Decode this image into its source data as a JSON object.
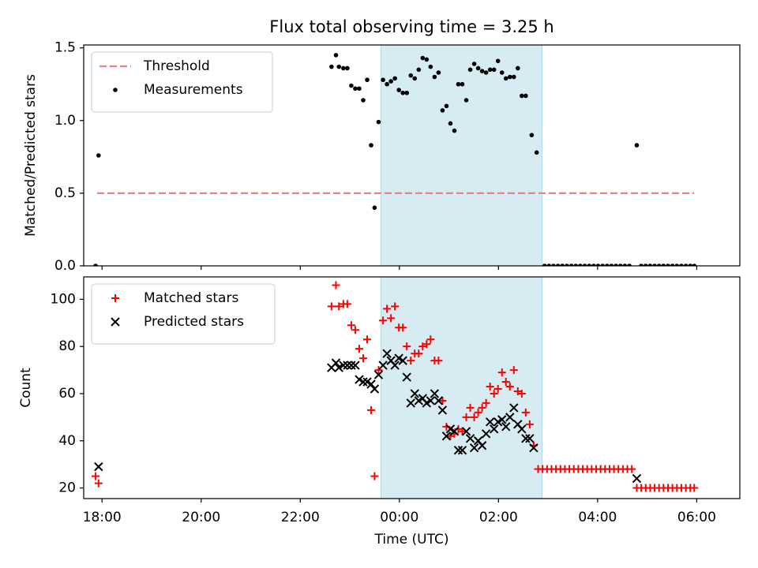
{
  "chart_data": [
    {
      "type": "scatter",
      "title": "Flux total observing time = 3.25 h",
      "xlabel": "",
      "ylabel": "Matched/Predicted stars",
      "xlim": [
        -6.37,
        6.87
      ],
      "ylim": [
        0,
        1.52
      ],
      "yticks": [
        0,
        0.5,
        1.0,
        1.5
      ],
      "ytick_labels": [
        "0.0",
        "0.5",
        "1.0",
        "1.5"
      ],
      "legend_position": "upper-left",
      "shaded_interval": {
        "from": -0.37,
        "to": 2.88,
        "color": "#add8e6"
      },
      "series": [
        {
          "name": "Threshold",
          "kind": "dashed-line",
          "color": "#f08080",
          "x": [
            -6.1,
            5.95
          ],
          "y": [
            0.5,
            0.5
          ]
        },
        {
          "name": "Measurements",
          "kind": "points",
          "color": "#000000",
          "points": [
            [
              -6.13,
              0.0
            ],
            [
              -6.07,
              0.76
            ],
            [
              -1.37,
              1.37
            ],
            [
              -1.28,
              1.45
            ],
            [
              -1.22,
              1.37
            ],
            [
              -1.13,
              1.36
            ],
            [
              -1.05,
              1.36
            ],
            [
              -0.97,
              1.24
            ],
            [
              -0.89,
              1.22
            ],
            [
              -0.81,
              1.22
            ],
            [
              -0.73,
              1.14
            ],
            [
              -0.65,
              1.28
            ],
            [
              -0.57,
              0.83
            ],
            [
              -0.5,
              0.4
            ],
            [
              -0.42,
              0.99
            ],
            [
              -0.33,
              1.28
            ],
            [
              -0.25,
              1.25
            ],
            [
              -0.17,
              1.27
            ],
            [
              -0.09,
              1.29
            ],
            [
              -0.01,
              1.21
            ],
            [
              0.07,
              1.19
            ],
            [
              0.15,
              1.19
            ],
            [
              0.23,
              1.31
            ],
            [
              0.31,
              1.29
            ],
            [
              0.39,
              1.35
            ],
            [
              0.47,
              1.43
            ],
            [
              0.55,
              1.42
            ],
            [
              0.63,
              1.37
            ],
            [
              0.71,
              1.3
            ],
            [
              0.79,
              1.33
            ],
            [
              0.87,
              1.07
            ],
            [
              0.95,
              1.1
            ],
            [
              1.03,
              0.98
            ],
            [
              1.11,
              0.93
            ],
            [
              1.19,
              1.25
            ],
            [
              1.27,
              1.25
            ],
            [
              1.35,
              1.14
            ],
            [
              1.43,
              1.35
            ],
            [
              1.51,
              1.39
            ],
            [
              1.59,
              1.36
            ],
            [
              1.67,
              1.34
            ],
            [
              1.75,
              1.33
            ],
            [
              1.83,
              1.35
            ],
            [
              1.91,
              1.35
            ],
            [
              1.99,
              1.41
            ],
            [
              2.07,
              1.33
            ],
            [
              2.15,
              1.29
            ],
            [
              2.23,
              1.3
            ],
            [
              2.31,
              1.3
            ],
            [
              2.39,
              1.36
            ],
            [
              2.47,
              1.17
            ],
            [
              2.55,
              1.17
            ],
            [
              2.67,
              0.9
            ],
            [
              2.77,
              0.78
            ],
            [
              2.93,
              0.0
            ],
            [
              3.02,
              0.0
            ],
            [
              3.11,
              0.0
            ],
            [
              3.2,
              0.0
            ],
            [
              3.29,
              0.0
            ],
            [
              3.38,
              0.0
            ],
            [
              3.47,
              0.0
            ],
            [
              3.56,
              0.0
            ],
            [
              3.65,
              0.0
            ],
            [
              3.74,
              0.0
            ],
            [
              3.83,
              0.0
            ],
            [
              3.92,
              0.0
            ],
            [
              4.01,
              0.0
            ],
            [
              4.1,
              0.0
            ],
            [
              4.19,
              0.0
            ],
            [
              4.28,
              0.0
            ],
            [
              4.37,
              0.0
            ],
            [
              4.46,
              0.0
            ],
            [
              4.55,
              0.0
            ],
            [
              4.64,
              0.0
            ],
            [
              4.79,
              0.83
            ],
            [
              4.88,
              0.0
            ],
            [
              4.97,
              0.0
            ],
            [
              5.06,
              0.0
            ],
            [
              5.15,
              0.0
            ],
            [
              5.24,
              0.0
            ],
            [
              5.33,
              0.0
            ],
            [
              5.42,
              0.0
            ],
            [
              5.51,
              0.0
            ],
            [
              5.6,
              0.0
            ],
            [
              5.69,
              0.0
            ],
            [
              5.78,
              0.0
            ],
            [
              5.87,
              0.0
            ],
            [
              5.95,
              0.0
            ]
          ]
        }
      ]
    },
    {
      "type": "scatter",
      "title": "",
      "xlabel": "Time (UTC)",
      "ylabel": "Count",
      "xlim": [
        -6.37,
        6.87
      ],
      "ylim": [
        15.5,
        109.5
      ],
      "xticks": [
        -6,
        -4,
        -2,
        0,
        2,
        4,
        6
      ],
      "xtick_labels": [
        "18:00",
        "20:00",
        "22:00",
        "00:00",
        "02:00",
        "04:00",
        "06:00"
      ],
      "yticks": [
        20,
        40,
        60,
        80,
        100
      ],
      "ytick_labels": [
        "20",
        "40",
        "60",
        "80",
        "100"
      ],
      "legend_position": "upper-left",
      "shaded_interval": {
        "from": -0.37,
        "to": 2.88,
        "color": "#add8e6"
      },
      "series": [
        {
          "name": "Matched stars",
          "kind": "plus",
          "color": "#ff0000",
          "points": [
            [
              -6.13,
              25
            ],
            [
              -6.07,
              22
            ],
            [
              -1.37,
              97
            ],
            [
              -1.28,
              106
            ],
            [
              -1.22,
              97
            ],
            [
              -1.13,
              98
            ],
            [
              -1.05,
              98
            ],
            [
              -0.97,
              89
            ],
            [
              -0.89,
              87
            ],
            [
              -0.81,
              79
            ],
            [
              -0.73,
              75
            ],
            [
              -0.65,
              83
            ],
            [
              -0.57,
              53
            ],
            [
              -0.5,
              25
            ],
            [
              -0.42,
              70
            ],
            [
              -0.33,
              91
            ],
            [
              -0.25,
              96
            ],
            [
              -0.17,
              92
            ],
            [
              -0.09,
              97
            ],
            [
              -0.01,
              88
            ],
            [
              0.07,
              88
            ],
            [
              0.15,
              80
            ],
            [
              0.23,
              74
            ],
            [
              0.31,
              77
            ],
            [
              0.39,
              77
            ],
            [
              0.47,
              80
            ],
            [
              0.55,
              81
            ],
            [
              0.63,
              83
            ],
            [
              0.71,
              74
            ],
            [
              0.79,
              74
            ],
            [
              0.87,
              57
            ],
            [
              0.95,
              46
            ],
            [
              1.03,
              42
            ],
            [
              1.11,
              43
            ],
            [
              1.19,
              45
            ],
            [
              1.27,
              44
            ],
            [
              1.35,
              50
            ],
            [
              1.43,
              54
            ],
            [
              1.51,
              50
            ],
            [
              1.59,
              52
            ],
            [
              1.67,
              54
            ],
            [
              1.75,
              56
            ],
            [
              1.83,
              63
            ],
            [
              1.91,
              60
            ],
            [
              1.99,
              62
            ],
            [
              2.07,
              69
            ],
            [
              2.15,
              65
            ],
            [
              2.23,
              63
            ],
            [
              2.31,
              70
            ],
            [
              2.39,
              61
            ],
            [
              2.47,
              60
            ],
            [
              2.55,
              52
            ],
            [
              2.63,
              47
            ],
            [
              2.71,
              38
            ],
            [
              2.8,
              28
            ],
            [
              2.89,
              28
            ],
            [
              2.98,
              28
            ],
            [
              3.07,
              28
            ],
            [
              3.16,
              28
            ],
            [
              3.25,
              28
            ],
            [
              3.34,
              28
            ],
            [
              3.43,
              28
            ],
            [
              3.52,
              28
            ],
            [
              3.61,
              28
            ],
            [
              3.7,
              28
            ],
            [
              3.79,
              28
            ],
            [
              3.88,
              28
            ],
            [
              3.97,
              28
            ],
            [
              4.06,
              28
            ],
            [
              4.15,
              28
            ],
            [
              4.24,
              28
            ],
            [
              4.33,
              28
            ],
            [
              4.42,
              28
            ],
            [
              4.51,
              28
            ],
            [
              4.6,
              28
            ],
            [
              4.69,
              28
            ],
            [
              4.79,
              20
            ],
            [
              4.88,
              20
            ],
            [
              4.97,
              20
            ],
            [
              5.06,
              20
            ],
            [
              5.15,
              20
            ],
            [
              5.24,
              20
            ],
            [
              5.33,
              20
            ],
            [
              5.42,
              20
            ],
            [
              5.51,
              20
            ],
            [
              5.6,
              20
            ],
            [
              5.69,
              20
            ],
            [
              5.78,
              20
            ],
            [
              5.87,
              20
            ],
            [
              5.95,
              20
            ]
          ]
        },
        {
          "name": "Predicted stars",
          "kind": "x",
          "color": "#000000",
          "points": [
            [
              -6.07,
              29
            ],
            [
              -1.37,
              71
            ],
            [
              -1.28,
              73
            ],
            [
              -1.22,
              71
            ],
            [
              -1.13,
              72
            ],
            [
              -1.05,
              72
            ],
            [
              -0.97,
              72
            ],
            [
              -0.89,
              72
            ],
            [
              -0.81,
              66
            ],
            [
              -0.73,
              65
            ],
            [
              -0.65,
              65
            ],
            [
              -0.57,
              64
            ],
            [
              -0.5,
              62
            ],
            [
              -0.42,
              68
            ],
            [
              -0.33,
              72
            ],
            [
              -0.25,
              77
            ],
            [
              -0.17,
              74
            ],
            [
              -0.09,
              72
            ],
            [
              -0.01,
              75
            ],
            [
              0.07,
              74
            ],
            [
              0.15,
              67
            ],
            [
              0.23,
              56
            ],
            [
              0.31,
              60
            ],
            [
              0.39,
              57
            ],
            [
              0.47,
              58
            ],
            [
              0.55,
              56
            ],
            [
              0.63,
              57
            ],
            [
              0.71,
              60
            ],
            [
              0.79,
              57
            ],
            [
              0.87,
              53
            ],
            [
              0.95,
              42
            ],
            [
              1.03,
              45
            ],
            [
              1.11,
              44
            ],
            [
              1.19,
              36
            ],
            [
              1.27,
              36
            ],
            [
              1.35,
              44
            ],
            [
              1.43,
              41
            ],
            [
              1.51,
              37
            ],
            [
              1.59,
              40
            ],
            [
              1.67,
              38
            ],
            [
              1.75,
              43
            ],
            [
              1.83,
              48
            ],
            [
              1.91,
              45
            ],
            [
              1.99,
              48
            ],
            [
              2.07,
              49
            ],
            [
              2.15,
              46
            ],
            [
              2.23,
              50
            ],
            [
              2.31,
              54
            ],
            [
              2.39,
              47
            ],
            [
              2.47,
              45
            ],
            [
              2.55,
              41
            ],
            [
              2.63,
              41
            ],
            [
              2.71,
              37
            ],
            [
              4.79,
              24
            ]
          ]
        }
      ]
    }
  ]
}
